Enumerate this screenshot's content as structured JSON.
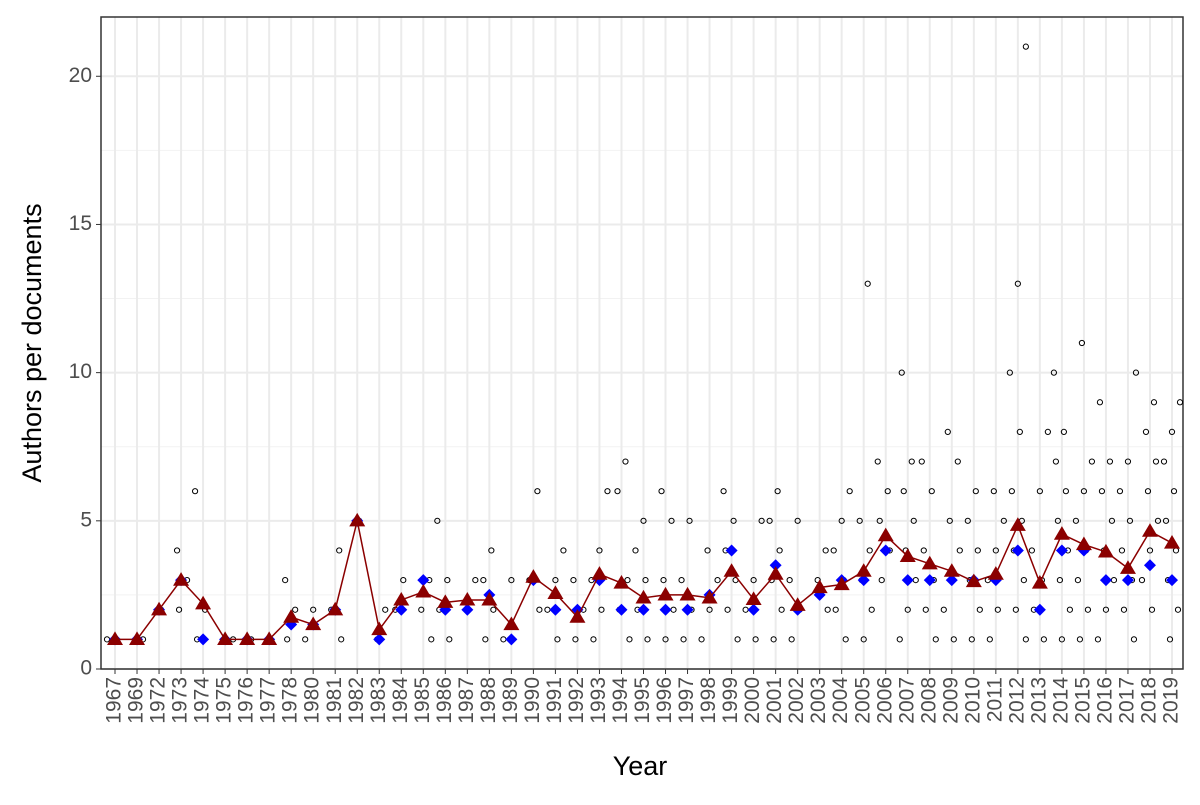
{
  "chart_data": {
    "type": "dotplot",
    "x_label": "Year",
    "y_label": "Authors per documents",
    "categories": [
      "1967",
      "1969",
      "1972",
      "1973",
      "1974",
      "1975",
      "1976",
      "1977",
      "1978",
      "1980",
      "1981",
      "1982",
      "1983",
      "1984",
      "1985",
      "1986",
      "1987",
      "1988",
      "1989",
      "1990",
      "1991",
      "1992",
      "1993",
      "1994",
      "1995",
      "1996",
      "1997",
      "1998",
      "1999",
      "2000",
      "2001",
      "2002",
      "2003",
      "2004",
      "2005",
      "2006",
      "2007",
      "2008",
      "2009",
      "2010",
      "2011",
      "2012",
      "2013",
      "2014",
      "2015",
      "2016",
      "2017",
      "2018",
      "2019"
    ],
    "points": {
      "color": "#000000",
      "values": [
        [
          1
        ],
        [
          1
        ],
        [
          2
        ],
        [
          2,
          3,
          4
        ],
        [
          1,
          2,
          6
        ],
        [
          1
        ],
        [
          1
        ],
        [
          1
        ],
        [
          1,
          2,
          3
        ],
        [
          1,
          2
        ],
        [
          1,
          2,
          4
        ],
        [
          5
        ],
        [
          1,
          2
        ],
        [
          2,
          3
        ],
        [
          1,
          2,
          3
        ],
        [
          1,
          2,
          3,
          5
        ],
        [
          2,
          3
        ],
        [
          1,
          2,
          3,
          4
        ],
        [
          1,
          3
        ],
        [
          2,
          3,
          6
        ],
        [
          1,
          2,
          3,
          4
        ],
        [
          1,
          2,
          3
        ],
        [
          1,
          2,
          3,
          4,
          6
        ],
        [
          1,
          2,
          3,
          6,
          7
        ],
        [
          1,
          2,
          3,
          4,
          5
        ],
        [
          1,
          2,
          3,
          5,
          6
        ],
        [
          1,
          2,
          3,
          5
        ],
        [
          1,
          2,
          3,
          4
        ],
        [
          1,
          2,
          3,
          4,
          5,
          6
        ],
        [
          1,
          2,
          3,
          5
        ],
        [
          1,
          2,
          3,
          4,
          5,
          6
        ],
        [
          1,
          2,
          3,
          5
        ],
        [
          2,
          3,
          4
        ],
        [
          1,
          2,
          3,
          4,
          5,
          6
        ],
        [
          1,
          2,
          3,
          4,
          5,
          13
        ],
        [
          3,
          4,
          5,
          6,
          7
        ],
        [
          1,
          2,
          3,
          4,
          5,
          6,
          7,
          10
        ],
        [
          1,
          2,
          3,
          4,
          6,
          7
        ],
        [
          1,
          2,
          3,
          4,
          5,
          7,
          8
        ],
        [
          1,
          2,
          3,
          4,
          5,
          6
        ],
        [
          1,
          2,
          3,
          4,
          5,
          6
        ],
        [
          1,
          2,
          3,
          4,
          5,
          6,
          8,
          10,
          13,
          21
        ],
        [
          1,
          2,
          3,
          4,
          6,
          8
        ],
        [
          1,
          2,
          3,
          4,
          5,
          6,
          7,
          8,
          10
        ],
        [
          1,
          2,
          3,
          4,
          5,
          6,
          7,
          11
        ],
        [
          1,
          2,
          3,
          4,
          5,
          6,
          7,
          9
        ],
        [
          1,
          2,
          3,
          4,
          5,
          6,
          7,
          10
        ],
        [
          2,
          3,
          4,
          5,
          6,
          7,
          8,
          9
        ],
        [
          1,
          2,
          3,
          4,
          5,
          6,
          7,
          8,
          9
        ]
      ]
    },
    "median": {
      "color": "#0000ff",
      "values": [
        1,
        1,
        2,
        3,
        1,
        1,
        1,
        1,
        1.5,
        1.5,
        2,
        5,
        1,
        2,
        3,
        2,
        2,
        2.5,
        1,
        3,
        2,
        2,
        3,
        2,
        2,
        2,
        2,
        2.5,
        4,
        2,
        3.5,
        2,
        2.5,
        3,
        3,
        4,
        3,
        3,
        3,
        3,
        3,
        4,
        2,
        4,
        4,
        3,
        3,
        3.5,
        3
      ]
    },
    "mean": {
      "color": "#8b0000",
      "values": [
        1,
        1,
        2,
        3,
        2.2,
        1,
        1,
        1,
        1.75,
        1.5,
        2,
        5,
        1.33,
        2.33,
        2.6,
        2.25,
        2.33,
        2.33,
        1.5,
        3.1,
        2.55,
        1.75,
        3.2,
        2.9,
        2.4,
        2.5,
        2.5,
        2.4,
        3.3,
        2.35,
        3.2,
        2.15,
        2.75,
        2.85,
        3.3,
        4.5,
        3.8,
        3.55,
        3.3,
        2.95,
        3.2,
        4.85,
        2.9,
        4.55,
        4.2,
        3.95,
        3.4,
        4.65,
        4.25
      ]
    },
    "ylim": [
      0,
      22
    ],
    "yticks": [
      0,
      5,
      10,
      15,
      20
    ],
    "yminor": [
      2.5,
      7.5,
      12.5,
      17.5
    ],
    "grid": true
  }
}
